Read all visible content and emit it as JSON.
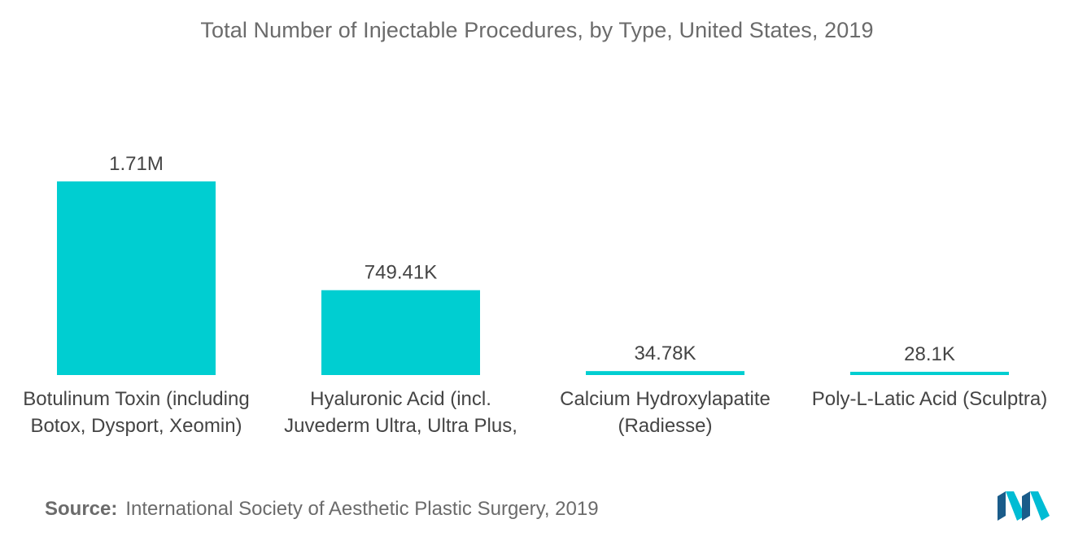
{
  "chart_data": {
    "type": "bar",
    "title": "Total Number of Injectable Procedures, by Type,  United States, 2019",
    "categories": [
      [
        "Botulinum Toxin (including",
        "Botox, Dysport, Xeomin)"
      ],
      [
        "Hyaluronic Acid (incl.",
        "Juvederm Ultra, Ultra Plus,"
      ],
      [
        "Calcium Hydroxylapatite",
        "(Radiesse)"
      ],
      [
        "Poly-L-Latic Acid (Sculptra)"
      ]
    ],
    "values": [
      1710000,
      749410,
      34780,
      28100
    ],
    "data_labels": [
      "1.71M",
      "749.41K",
      "34.78K",
      "28.1K"
    ],
    "xlabel": "",
    "ylabel": "",
    "grid": false,
    "legend": false,
    "bar_color": "#00CED1"
  },
  "source": {
    "label": "Source:",
    "text": "International Society of Aesthetic Plastic Surgery, 2019"
  },
  "logo": {
    "icon": "mordor-intelligence-logo",
    "colors": [
      "#1a5c8a",
      "#00bcd4"
    ]
  }
}
